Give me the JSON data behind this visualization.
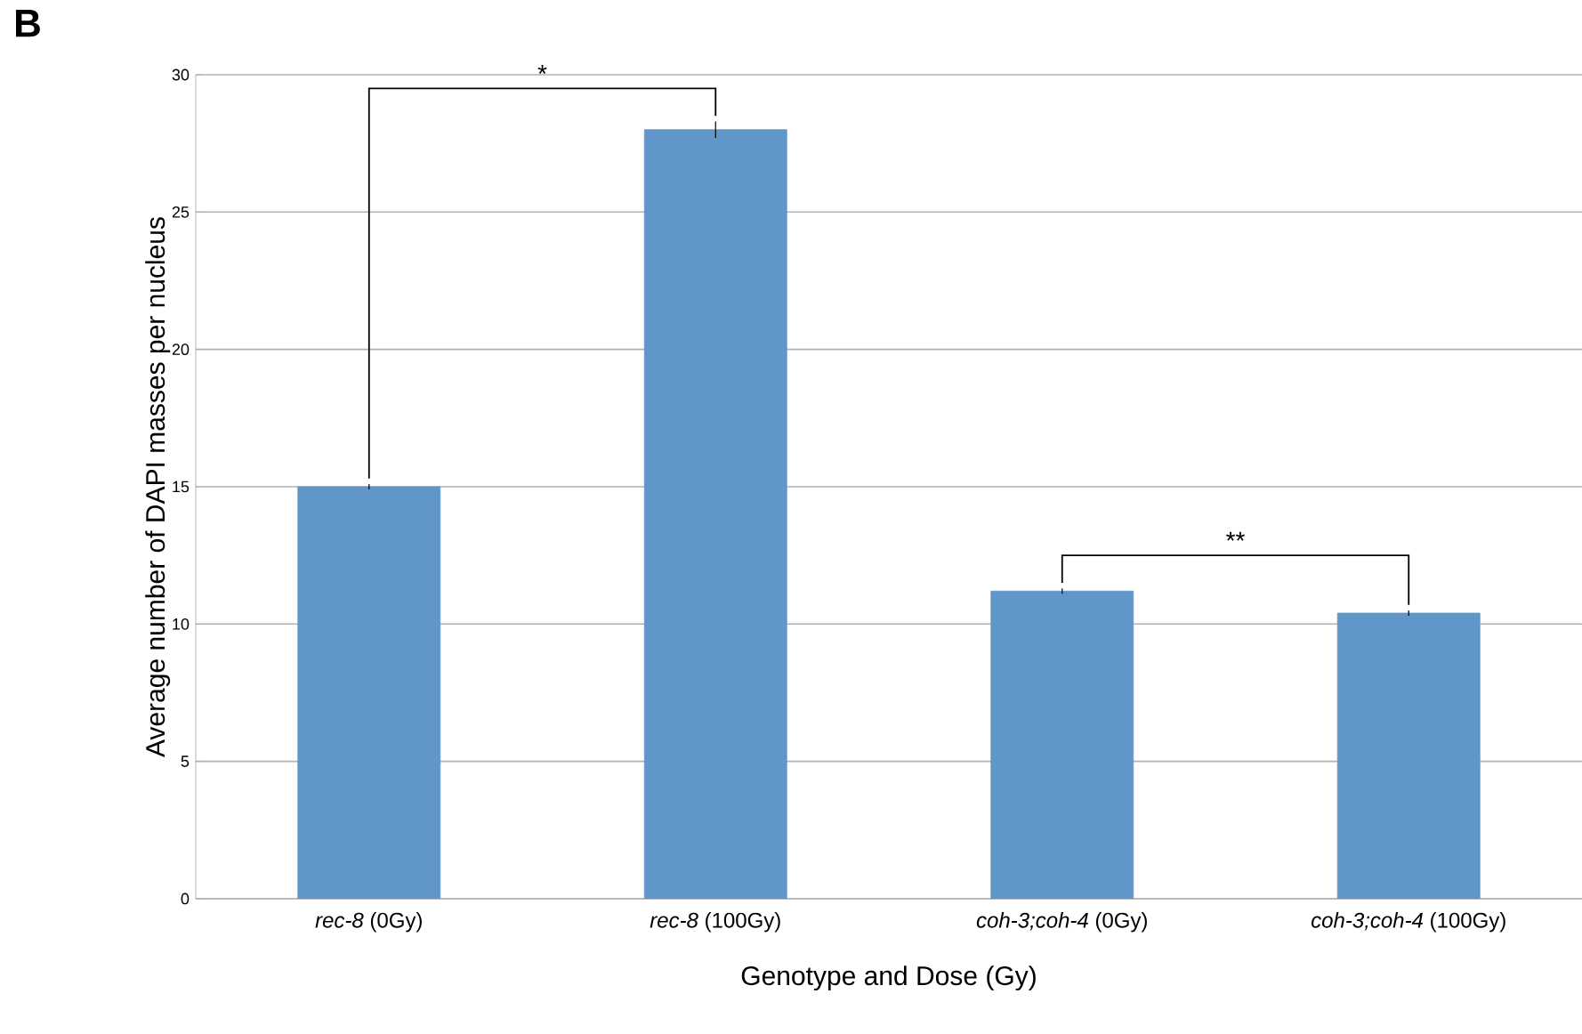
{
  "chart_data": {
    "type": "bar",
    "xlabel": "Genotype and Dose (Gy)",
    "ylabel": "Average number of DAPI masses per nucleus",
    "categories": [
      "*rec-8* (0Gy)",
      "*rec-8* (100Gy)",
      "*coh-3;coh-4* (0Gy)",
      "*coh-3;coh-4* (100Gy)"
    ],
    "values": [
      15,
      28,
      11.2,
      10.4
    ],
    "errors": [
      0.1,
      0.3,
      0.1,
      0.1
    ],
    "color": "#6096c9",
    "ylim": [
      0,
      30
    ],
    "yticks": [
      0,
      5,
      10,
      15,
      20,
      25,
      30
    ],
    "grid": "y",
    "annotations": [
      "B",
      "*",
      "**"
    ]
  }
}
